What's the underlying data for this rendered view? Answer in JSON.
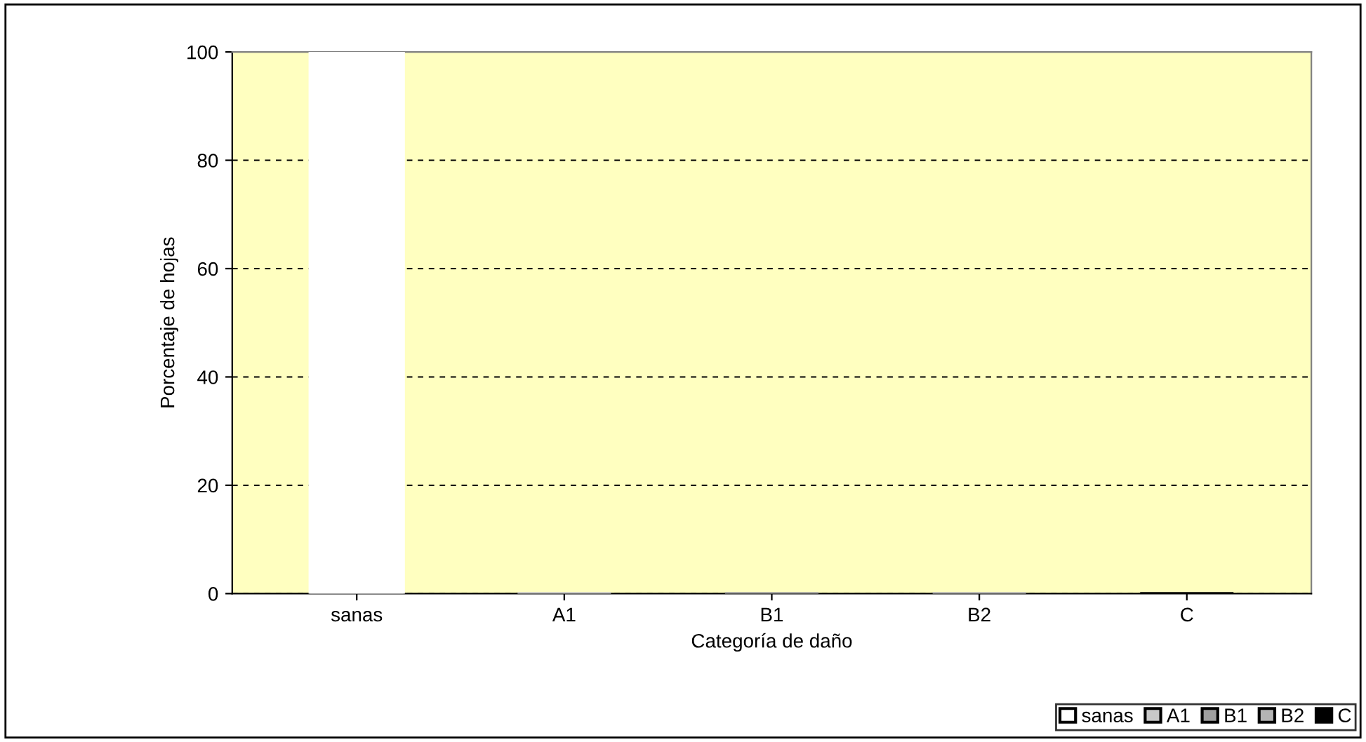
{
  "chart_data": {
    "type": "bar",
    "xlabel": "Categoría de daño",
    "ylabel": "Porcentaje de hojas",
    "categories": [
      "sanas",
      "A1",
      "B1",
      "B2",
      "C"
    ],
    "series": [
      {
        "name": "sanas",
        "color": "#ffffff",
        "values": [
          100,
          null,
          null,
          null,
          null
        ]
      },
      {
        "name": "A1",
        "color": "#c8c8c8",
        "values": [
          null,
          0,
          null,
          null,
          null
        ]
      },
      {
        "name": "B1",
        "color": "#a0a0a0",
        "values": [
          null,
          null,
          0,
          null,
          null
        ]
      },
      {
        "name": "B2",
        "color": "#b4b4b4",
        "values": [
          null,
          null,
          null,
          0,
          null
        ]
      },
      {
        "name": "C",
        "color": "#000000",
        "values": [
          null,
          null,
          null,
          null,
          0
        ]
      }
    ],
    "ylim": [
      0,
      100
    ],
    "yticks": [
      0,
      20,
      40,
      60,
      80,
      100
    ],
    "grid": "y",
    "legend": "bottom right"
  }
}
